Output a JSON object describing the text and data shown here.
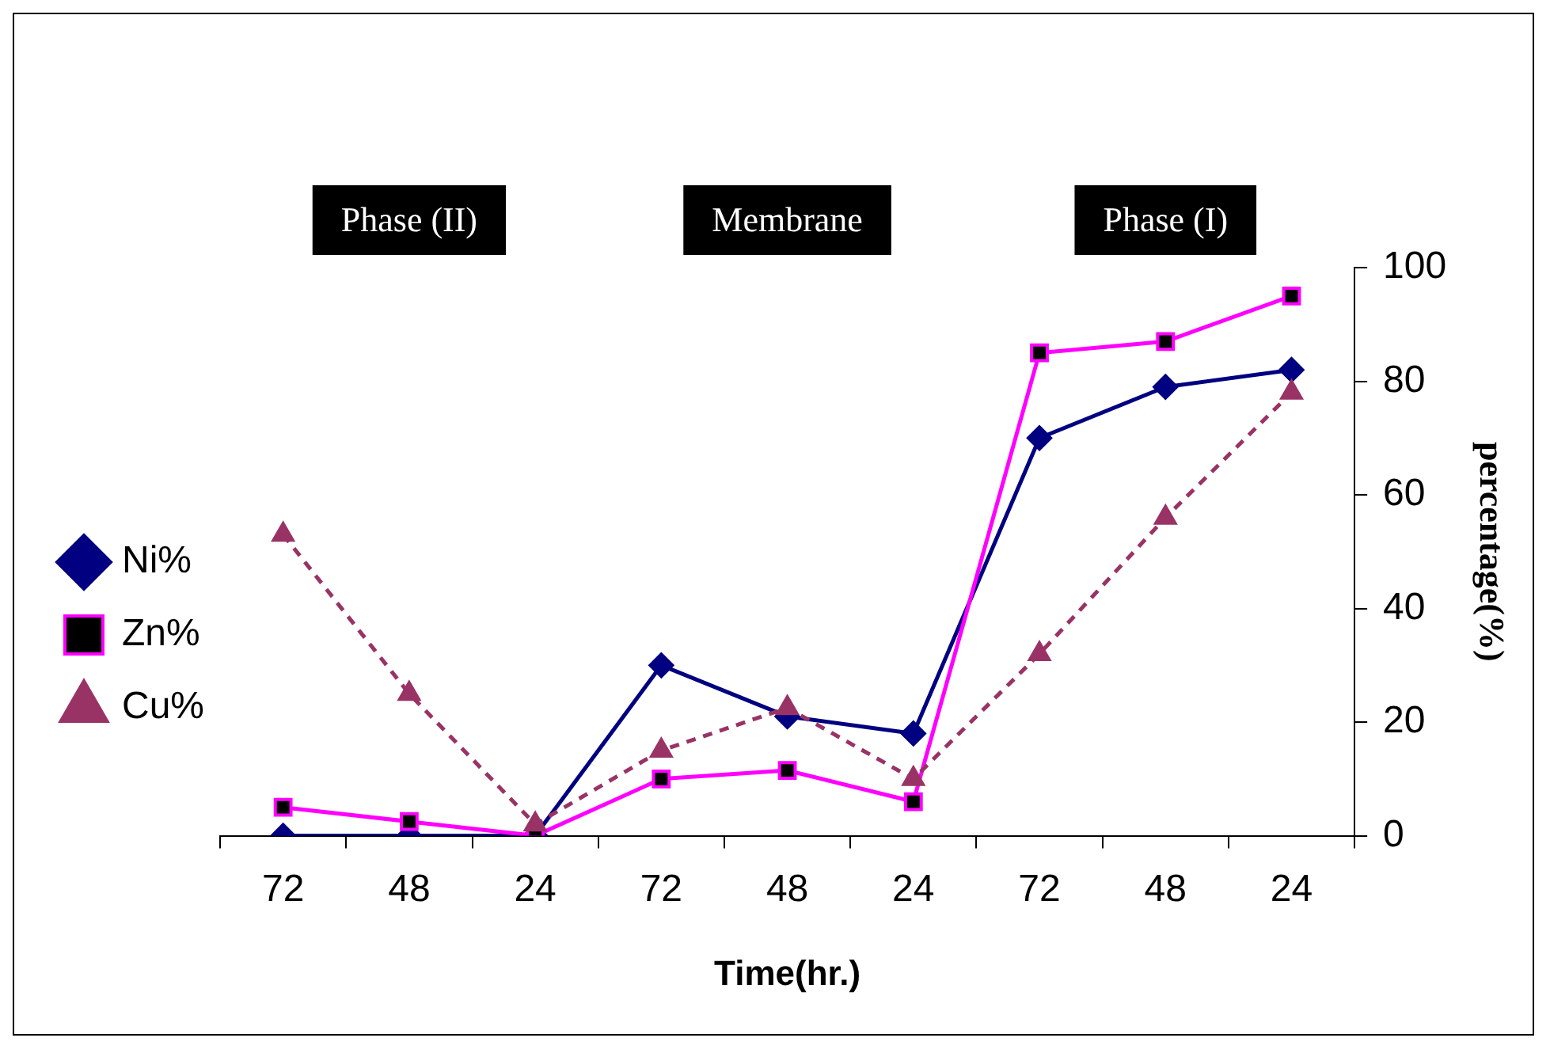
{
  "chart_data": {
    "type": "line",
    "xlabel": "Time(hr.)",
    "ylabel": "percentage(%)",
    "categories": [
      "72",
      "48",
      "24",
      "72",
      "48",
      "24",
      "72",
      "48",
      "24"
    ],
    "series": [
      {
        "name": "Ni%",
        "color": "#000080",
        "marker": "diamond",
        "line_style": "solid",
        "values": [
          0,
          0,
          0,
          30,
          21,
          18,
          70,
          79,
          82
        ]
      },
      {
        "name": "Zn%",
        "color": "#ff00ff",
        "marker": "square",
        "line_style": "solid",
        "values": [
          5,
          2.5,
          0,
          10,
          11.5,
          6,
          85,
          87,
          95
        ]
      },
      {
        "name": "Cu%",
        "color": "#993366",
        "marker": "triangle",
        "line_style": "dashed",
        "values": [
          53,
          25,
          2,
          15,
          22.5,
          10,
          32,
          56,
          78
        ]
      }
    ],
    "ylim": [
      0,
      100
    ],
    "yticks": [
      0,
      20,
      40,
      60,
      80,
      100
    ],
    "grid": false,
    "legend": "left",
    "annotations": [
      "Phase (II)",
      "Membrane",
      "Phase (I)"
    ]
  }
}
